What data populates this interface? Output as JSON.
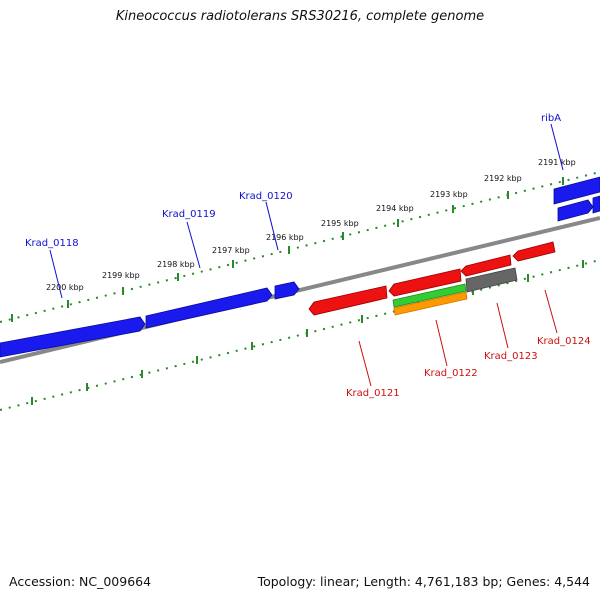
{
  "title": "Kineococcus radiotolerans SRS30216, complete genome",
  "footer": {
    "accession": "Accession: NC_009664",
    "topology": "Topology: linear; Length: 4,761,183 bp; Genes: 4,544"
  },
  "colors": {
    "forward_gene": "#1a1aee",
    "reverse_gene": "#ee1111",
    "green_feature": "#33cc33",
    "orange_feature": "#ff9900",
    "gray_feature": "#666666",
    "backbone": "#888888",
    "ticks": "#2a8a2a",
    "forward_label": "#1010cc",
    "reverse_label": "#cc1010"
  },
  "ruler": [
    "2191 kbp",
    "2192 kbp",
    "2193 kbp",
    "2194 kbp",
    "2195 kbp",
    "2196 kbp",
    "2197 kbp",
    "2198 kbp",
    "2199 kbp",
    "2200 kbp"
  ],
  "genes": {
    "forward": [
      "ribA",
      "Krad_0120",
      "Krad_0119",
      "Krad_0118"
    ],
    "reverse": [
      "Krad_0124",
      "Krad_0123",
      "Krad_0122",
      "Krad_0121"
    ]
  }
}
